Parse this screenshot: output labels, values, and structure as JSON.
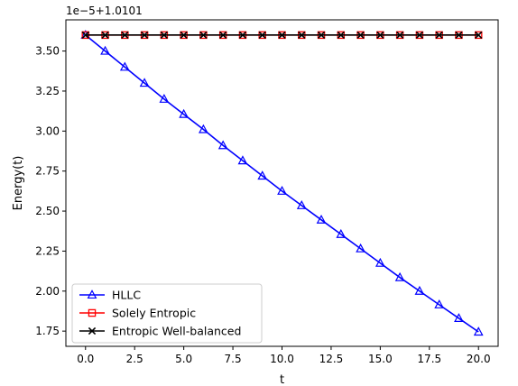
{
  "chart_data": {
    "type": "line",
    "title": "",
    "xlabel": "t",
    "ylabel": "Energy(t)",
    "y_offset_text": "1e−5+1.0101",
    "xlim": [
      -1.0,
      21.0
    ],
    "ylim": [
      1.655,
      3.695
    ],
    "x_ticks": [
      0,
      2.5,
      5,
      7.5,
      10,
      12.5,
      15,
      17.5,
      20
    ],
    "x_tick_labels": [
      "0.0",
      "2.5",
      "5.0",
      "7.5",
      "10.0",
      "12.5",
      "15.0",
      "17.5",
      "20.0"
    ],
    "y_ticks": [
      1.75,
      2.0,
      2.25,
      2.5,
      2.75,
      3.0,
      3.25,
      3.5
    ],
    "y_tick_labels": [
      "1.75",
      "2.00",
      "2.25",
      "2.50",
      "2.75",
      "3.00",
      "3.25",
      "3.50"
    ],
    "grid": false,
    "legend_position": "lower-left",
    "x": [
      0,
      1,
      2,
      3,
      4,
      5,
      6,
      7,
      8,
      9,
      10,
      11,
      12,
      13,
      14,
      15,
      16,
      17,
      18,
      19,
      20
    ],
    "series": [
      {
        "name": "HLLC",
        "color": "#0000ff",
        "marker": "triangle",
        "values": [
          3.6,
          3.5,
          3.4,
          3.3,
          3.2,
          3.105,
          3.01,
          2.91,
          2.815,
          2.72,
          2.625,
          2.535,
          2.445,
          2.355,
          2.265,
          2.175,
          2.085,
          2.0,
          1.915,
          1.83,
          1.745
        ]
      },
      {
        "name": "Solely Entropic",
        "color": "#ff0000",
        "marker": "square",
        "values": [
          3.6,
          3.6,
          3.6,
          3.6,
          3.6,
          3.6,
          3.6,
          3.6,
          3.6,
          3.6,
          3.6,
          3.6,
          3.6,
          3.6,
          3.6,
          3.6,
          3.6,
          3.6,
          3.6,
          3.6,
          3.6
        ]
      },
      {
        "name": "Entropic Well-balanced",
        "color": "#000000",
        "marker": "x",
        "values": [
          3.6,
          3.6,
          3.6,
          3.6,
          3.6,
          3.6,
          3.6,
          3.6,
          3.6,
          3.6,
          3.6,
          3.6,
          3.6,
          3.6,
          3.6,
          3.6,
          3.6,
          3.6,
          3.6,
          3.6,
          3.6
        ]
      }
    ]
  }
}
